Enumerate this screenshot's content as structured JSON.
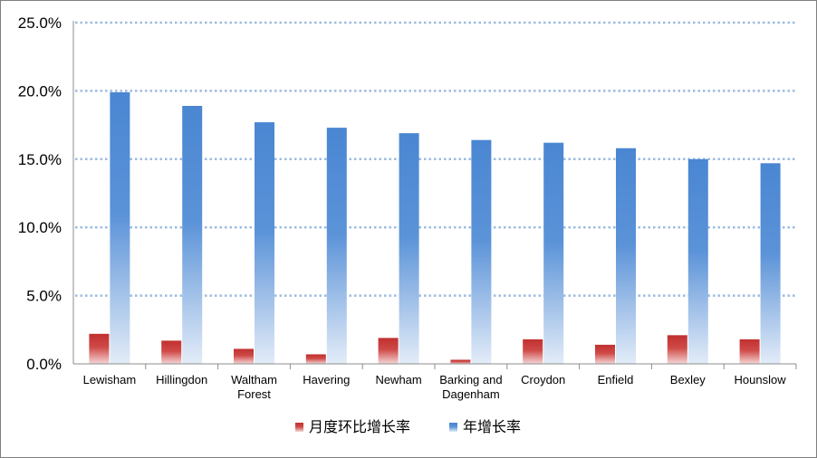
{
  "chart_data": {
    "type": "bar",
    "categories": [
      [
        "Lewisham"
      ],
      [
        "Hillingdon"
      ],
      [
        "Waltham",
        "Forest"
      ],
      [
        "Havering"
      ],
      [
        "Newham"
      ],
      [
        "Barking and",
        "Dagenham"
      ],
      [
        "Croydon"
      ],
      [
        "Enfield"
      ],
      [
        "Bexley"
      ],
      [
        "Hounslow"
      ]
    ],
    "series": [
      {
        "name": "月度环比增长率",
        "color": "#c0302f",
        "values": [
          2.2,
          1.7,
          1.1,
          0.7,
          1.9,
          0.3,
          1.8,
          1.4,
          2.1,
          1.8
        ]
      },
      {
        "name": "年增长率",
        "color": "#4a86d2",
        "values": [
          19.9,
          18.9,
          17.7,
          17.3,
          16.9,
          16.4,
          16.2,
          15.8,
          15.0,
          14.7
        ]
      }
    ],
    "ylim": [
      0,
      25
    ],
    "yticks": [
      0,
      5,
      10,
      15,
      20,
      25
    ],
    "ytick_labels": [
      "0.0%",
      "5.0%",
      "10.0%",
      "15.0%",
      "20.0%",
      "25.0%"
    ],
    "grid": "horizontal dotted",
    "legend": "bottom-center",
    "title": "",
    "xlabel": "",
    "ylabel": ""
  }
}
